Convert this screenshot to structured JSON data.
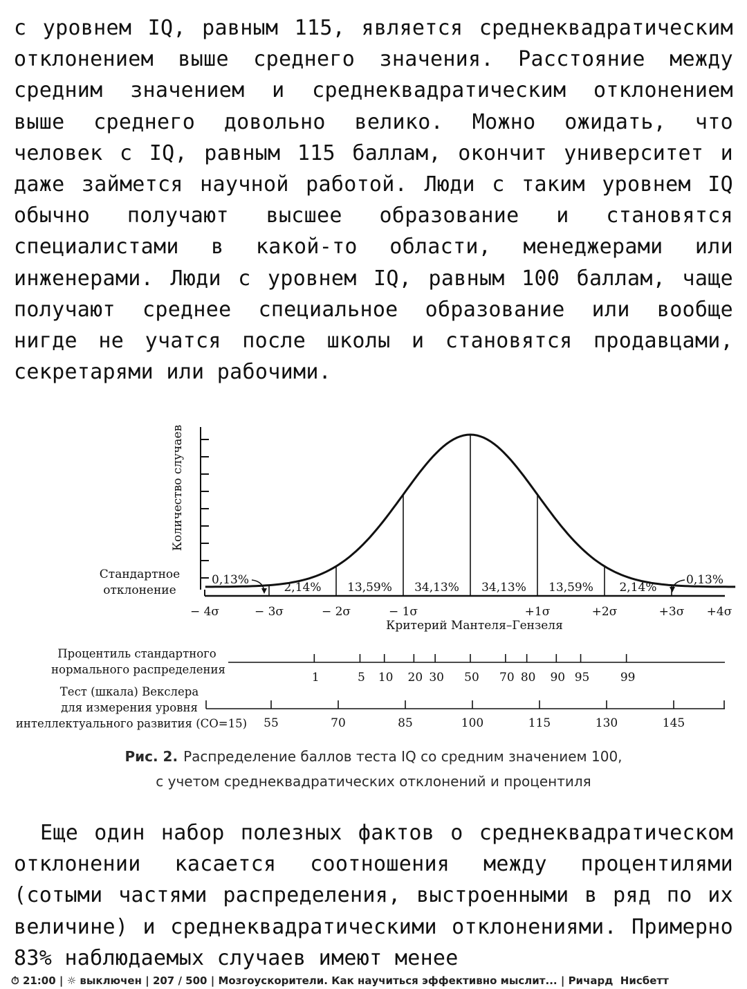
{
  "paragraphs": {
    "top": "с уровнем IQ, равным 115, является среднеквадратиче­ским отклонением выше среднего значения. Расстояние между средним значением и среднеквадратическим откло­нением выше среднего довольно велико. Можно ожидать, что человек с IQ, равным 115 баллам, окончит универси­тет и даже займется научной работой. Люди с таким уровнем IQ обычно получают высшее образование и ста­новятся специалистами в какой-то области, менеджерами или инженерами. Люди с уровнем IQ, равным 100 баллам, чаще получают среднее специальное образование или вообще нигде не учатся после школы и становятся про­давцами, секретарями или рабочими.",
    "bottom": "Еще один набор полезных фактов о среднеквадратиче­ском отклонении касается соотношения между проценти­лями (сотыми частями распределения, выстроенными в ряд по их величине) и среднеквадратическими откло­нениями. Примерно 83% наблюдаемых случаев имеют менее"
  },
  "figure": {
    "y_axis_label": "Количество случаев",
    "sd_label_line1": "Стандартное",
    "sd_label_line2": "отклонение",
    "tail_left": "0,13%",
    "tail_right": "0,13%",
    "band_percents": [
      "2,14%",
      "13,59%",
      "34,13%",
      "34,13%",
      "13,59%",
      "2,14%"
    ],
    "sigma_labels": [
      "− 4σ",
      "− 3σ",
      "− 2σ",
      "− 1σ",
      "+1σ",
      "+2σ",
      "+3σ",
      "+4σ"
    ],
    "x_axis_label": "Критерий Мантеля–Гензеля",
    "percentile_label_line1": "Процентиль стандартного",
    "percentile_label_line2": "нормального распределения",
    "percentiles": [
      "1",
      "5",
      "10",
      "20",
      "30",
      "50",
      "70",
      "80",
      "90",
      "95",
      "99"
    ],
    "wechsler_label_line1": "Тест (шкала) Векслера",
    "wechsler_label_line2": "для измерения уровня",
    "wechsler_label_line3": "интеллектуального развития (СО=15)",
    "wechsler_scores": [
      "55",
      "70",
      "85",
      "100",
      "115",
      "130",
      "145"
    ],
    "caption_prefix": "Рис. 2.",
    "caption_line1": "Распределение баллов теста IQ со средним значением 100,",
    "caption_line2": "с учетом среднеквадратических отклонений и процентиля"
  },
  "chart_data": {
    "type": "area",
    "title": "",
    "xlabel": "Критерий Мантеля–Гензеля",
    "ylabel": "Количество случаев",
    "x": [
      -4,
      -3,
      -2,
      -1,
      0,
      1,
      2,
      3,
      4
    ],
    "bands": [
      {
        "from": -4,
        "to": -3,
        "percent": 0.13
      },
      {
        "from": -3,
        "to": -2,
        "percent": 2.14
      },
      {
        "from": -2,
        "to": -1,
        "percent": 13.59
      },
      {
        "from": -1,
        "to": 0,
        "percent": 34.13
      },
      {
        "from": 0,
        "to": 1,
        "percent": 34.13
      },
      {
        "from": 1,
        "to": 2,
        "percent": 13.59
      },
      {
        "from": 2,
        "to": 3,
        "percent": 2.14
      },
      {
        "from": 3,
        "to": 4,
        "percent": 0.13
      }
    ],
    "percentile_positions": [
      1,
      5,
      10,
      20,
      30,
      50,
      70,
      80,
      90,
      95,
      99
    ],
    "wechsler_scale": {
      "mean": 100,
      "sd": 15,
      "scores": [
        55,
        70,
        85,
        100,
        115,
        130,
        145
      ]
    }
  },
  "status_bar": {
    "clock_icon": "clock-icon",
    "time": "21:00",
    "sep1": "|",
    "light_icon": "sun-icon",
    "light_state": "выключен",
    "sep2": "|",
    "pages": "207 / 500",
    "sep3": "|",
    "book_title": "Мозгоускорители. Как научиться эффективно мыслит...",
    "sep4": "|",
    "author": "Ричард  Нисбетт"
  }
}
